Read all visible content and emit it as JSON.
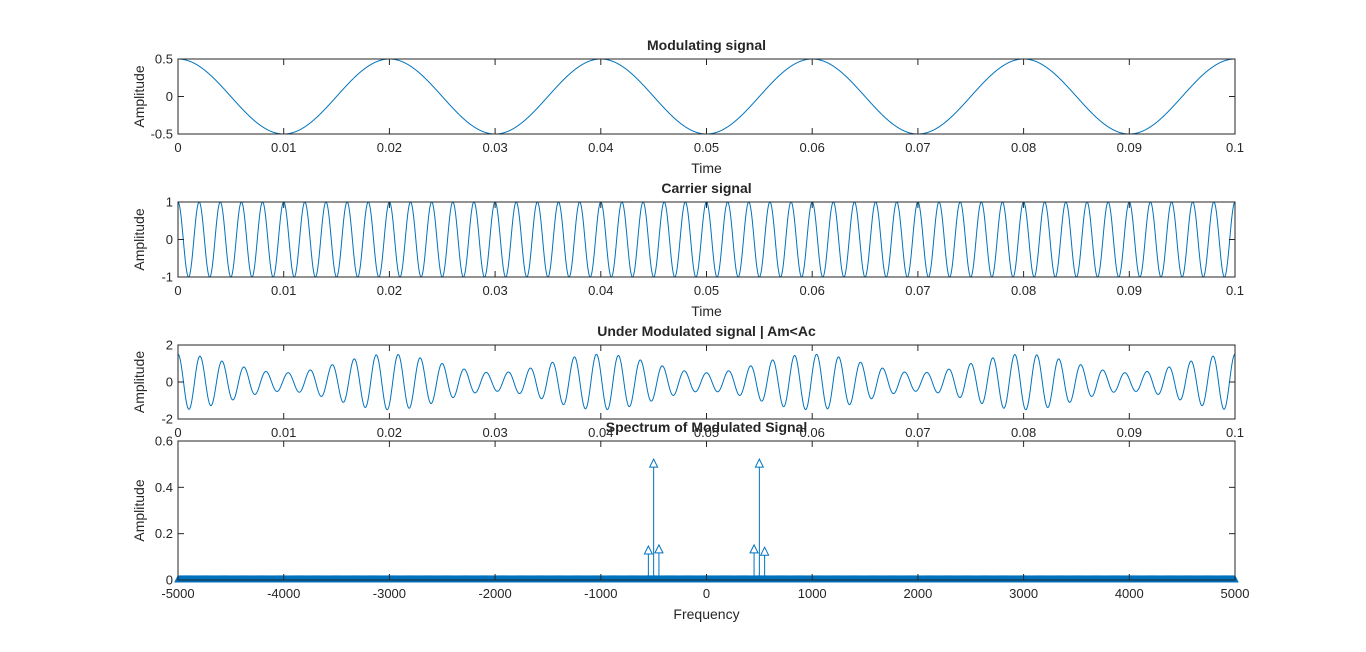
{
  "figure": {
    "background": "#ffffff",
    "axes_color": "#262626",
    "line_color": "#0072bd"
  },
  "chart_data": [
    {
      "type": "line",
      "title": "Modulating signal",
      "xlabel": "Time",
      "ylabel": "Amplitude",
      "xlim": [
        0,
        0.1
      ],
      "ylim": [
        -0.5,
        0.5
      ],
      "xticks": [
        0,
        0.01,
        0.02,
        0.03,
        0.04,
        0.05,
        0.06,
        0.07,
        0.08,
        0.09,
        0.1
      ],
      "xtick_labels": [
        "0",
        "0.01",
        "0.02",
        "0.03",
        "0.04",
        "0.05",
        "0.06",
        "0.07",
        "0.08",
        "0.09",
        "0.1"
      ],
      "yticks": [
        -0.5,
        0,
        0.5
      ],
      "ytick_labels": [
        "-0.5",
        "0",
        "0.5"
      ],
      "grid": false,
      "series": [
        {
          "kind": "cosine",
          "amplitude": 0.5,
          "frequency_hz": 50,
          "color": "#0072bd"
        }
      ]
    },
    {
      "type": "line",
      "title": "Carrier signal",
      "xlabel": "Time",
      "ylabel": "Amplitude",
      "xlim": [
        0,
        0.1
      ],
      "ylim": [
        -1,
        1
      ],
      "xticks": [
        0,
        0.01,
        0.02,
        0.03,
        0.04,
        0.05,
        0.06,
        0.07,
        0.08,
        0.09,
        0.1
      ],
      "xtick_labels": [
        "0",
        "0.01",
        "0.02",
        "0.03",
        "0.04",
        "0.05",
        "0.06",
        "0.07",
        "0.08",
        "0.09",
        "0.1"
      ],
      "yticks": [
        -1,
        0,
        1
      ],
      "ytick_labels": [
        "-1",
        "0",
        "1"
      ],
      "grid": false,
      "series": [
        {
          "kind": "cosine",
          "amplitude": 1,
          "frequency_hz": 500,
          "color": "#0072bd"
        }
      ]
    },
    {
      "type": "line",
      "title": "Under Modulated signal | Am<Ac",
      "xlabel": "",
      "ylabel": "Amplitude",
      "xlim": [
        0,
        0.1
      ],
      "ylim": [
        -2,
        2
      ],
      "xticks": [
        0,
        0.01,
        0.02,
        0.03,
        0.04,
        0.05,
        0.06,
        0.07,
        0.08,
        0.09,
        0.1
      ],
      "xtick_labels": [
        "0",
        "0.01",
        "0.02",
        "0.03",
        "0.04",
        "0.05",
        "0.06",
        "0.07",
        "0.08",
        "0.09",
        "0.1"
      ],
      "yticks": [
        -2,
        0,
        2
      ],
      "ytick_labels": [
        "-2",
        "0",
        "2"
      ],
      "grid": false,
      "series": [
        {
          "kind": "am",
          "carrier_amplitude": 1,
          "carrier_frequency_hz": 480,
          "message_amplitude": 0.5,
          "message_frequency_hz": 50,
          "color": "#0072bd"
        }
      ]
    },
    {
      "type": "stem",
      "title": "Spectrum of Modulated Signal",
      "xlabel": "Frequency",
      "ylabel": "Amplitude",
      "xlim": [
        -5000,
        5000
      ],
      "ylim": [
        0,
        0.6
      ],
      "xticks": [
        -5000,
        -4000,
        -3000,
        -2000,
        -1000,
        0,
        1000,
        2000,
        3000,
        4000,
        5000
      ],
      "xtick_labels": [
        "-5000",
        "-4000",
        "-3000",
        "-2000",
        "-1000",
        "0",
        "1000",
        "2000",
        "3000",
        "4000",
        "5000"
      ],
      "yticks": [
        0,
        0.2,
        0.4,
        0.6
      ],
      "ytick_labels": [
        "0",
        "0.2",
        "0.4",
        "0.6"
      ],
      "grid": false,
      "marker": "triangle",
      "baseline_spacing_hz": 10,
      "stems": [
        {
          "x": -550,
          "y": 0.125
        },
        {
          "x": -500,
          "y": 0.5
        },
        {
          "x": -450,
          "y": 0.13
        },
        {
          "x": 450,
          "y": 0.13
        },
        {
          "x": 500,
          "y": 0.5
        },
        {
          "x": 550,
          "y": 0.12
        }
      ],
      "color": "#0072bd"
    }
  ]
}
